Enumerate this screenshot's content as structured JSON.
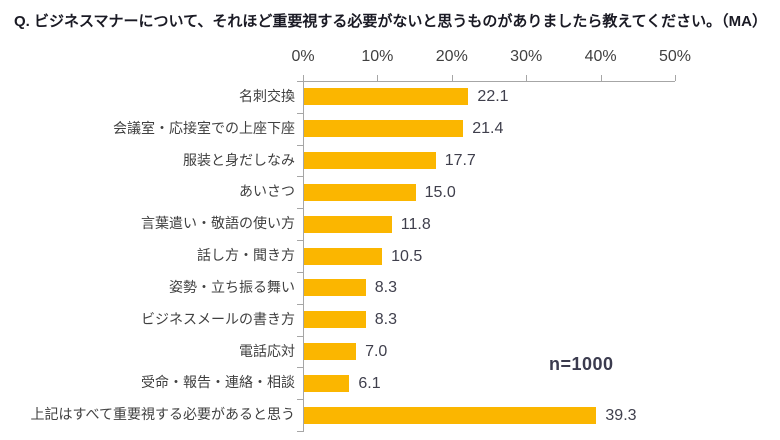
{
  "title": "Q. ビジネスマナーについて、それほど重要視する必要がないと思うものがありましたら教えてください。（MA）",
  "annotation": "n=1000",
  "colors": {
    "bar": "#fbb600",
    "axis": "#a6a6a6",
    "value_text": "#3f3f4c",
    "category_text": "#404040",
    "title_text": "#1a1a24"
  },
  "chart_data": {
    "type": "bar",
    "orientation": "horizontal",
    "title": "Q. ビジネスマナーについて、それほど重要視する必要がないと思うものがありましたら教えてください。（MA）",
    "categories": [
      "名刺交換",
      "会議室・応接室での上座下座",
      "服装と身だしなみ",
      "あいさつ",
      "言葉遣い・敬語の使い方",
      "話し方・聞き方",
      "姿勢・立ち振る舞い",
      "ビジネスメールの書き方",
      "電話応対",
      "受命・報告・連絡・相談",
      "上記はすべて重要視する必要があると思う"
    ],
    "values": [
      22.1,
      21.4,
      17.7,
      15.0,
      11.8,
      10.5,
      8.3,
      8.3,
      7.0,
      6.1,
      39.3
    ],
    "x_tick_labels": [
      "0%",
      "10%",
      "20%",
      "30%",
      "40%",
      "50%"
    ],
    "xlim": [
      0,
      50
    ],
    "xlabel": "",
    "ylabel": "",
    "grid": false,
    "legend": false,
    "axis_position": "top",
    "annotation": "n=1000",
    "sample_size": 1000
  }
}
